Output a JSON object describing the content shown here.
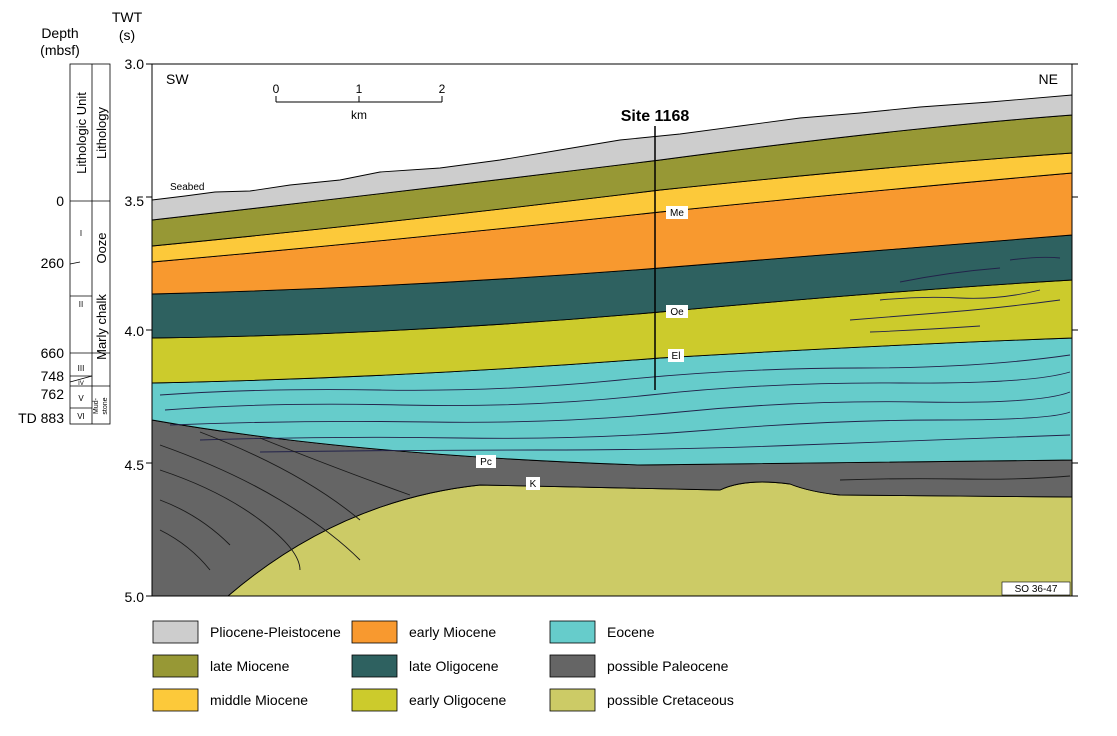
{
  "headers": {
    "depth": "Depth",
    "depth_unit": "(mbsf)",
    "twt": "TWT",
    "twt_unit": "(s)"
  },
  "column_labels": {
    "lithologic_unit": "Lithologic Unit",
    "lithology": "Lithology"
  },
  "depths": [
    "0",
    "260",
    "660",
    "748",
    "762",
    "TD 883"
  ],
  "units": [
    "I",
    "II",
    "III",
    "IV",
    "V",
    "VI"
  ],
  "lithologies": [
    "Ooze",
    "Marly chalk",
    "Mud-",
    "stone"
  ],
  "twt_ticks": [
    "3.0",
    "3.5",
    "4.0",
    "4.5",
    "5.0"
  ],
  "directions": {
    "left": "SW",
    "right": "NE"
  },
  "scale_bar": {
    "ticks": [
      "0",
      "1",
      "2"
    ],
    "unit": "km"
  },
  "site_label": "Site 1168",
  "seabed_label": "Seabed",
  "horizon_labels": {
    "me": "Me",
    "oe": "Oe",
    "el": "El",
    "pc": "Pc",
    "k": "K"
  },
  "line_id": "SO 36-47",
  "legend": [
    {
      "label": "Pliocene-Pleistocene",
      "color": "#cdcdcd"
    },
    {
      "label": "late Miocene",
      "color": "#979835"
    },
    {
      "label": "middle Miocene",
      "color": "#fcc93a"
    },
    {
      "label": "early Miocene",
      "color": "#f8992f"
    },
    {
      "label": "late Oligocene",
      "color": "#2e6160"
    },
    {
      "label": "early Oligocene",
      "color": "#cccb2c"
    },
    {
      "label": "Eocene",
      "color": "#66cccb"
    },
    {
      "label": "possible Paleocene",
      "color": "#656565"
    },
    {
      "label": "possible Cretaceous",
      "color": "#cccb66"
    }
  ]
}
